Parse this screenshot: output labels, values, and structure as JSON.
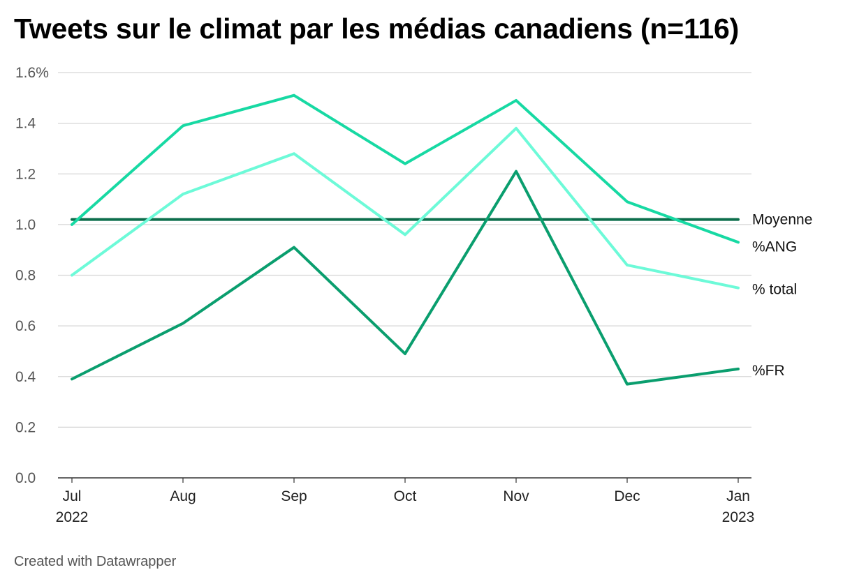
{
  "header": {
    "title": "Tweets sur le climat par les médias canadiens (n=116)"
  },
  "footer": {
    "credit": "Created with Datawrapper"
  },
  "chart_data": {
    "type": "line",
    "title": "Tweets sur le climat par les médias canadiens (n=116)",
    "xlabel": "",
    "ylabel": "",
    "x": [
      "2022-07",
      "2022-08",
      "2022-09",
      "2022-10",
      "2022-11",
      "2022-12",
      "2023-01"
    ],
    "x_tick_labels": [
      {
        "month": "Jul",
        "year": "2022"
      },
      {
        "month": "Aug",
        "year": ""
      },
      {
        "month": "Sep",
        "year": ""
      },
      {
        "month": "Oct",
        "year": ""
      },
      {
        "month": "Nov",
        "year": ""
      },
      {
        "month": "Dec",
        "year": ""
      },
      {
        "month": "Jan",
        "year": "2023"
      }
    ],
    "ylim": [
      0,
      1.6
    ],
    "y_ticks": [
      0,
      0.2,
      0.4,
      0.6,
      0.8,
      1.0,
      1.2,
      1.4,
      1.6
    ],
    "y_tick_labels": [
      "0.0",
      "0.2",
      "0.4",
      "0.6",
      "0.8",
      "1.0",
      "1.2",
      "1.4",
      "1.6%"
    ],
    "grid": true,
    "series": [
      {
        "name": "Moyenne",
        "color": "#0c6e4b",
        "values": [
          1.02,
          1.02,
          1.02,
          1.02,
          1.02,
          1.02,
          1.02
        ]
      },
      {
        "name": "%ANG",
        "color": "#17d9a3",
        "values": [
          1.0,
          1.39,
          1.51,
          1.24,
          1.49,
          1.09,
          0.93
        ]
      },
      {
        "name": "% total",
        "color": "#6dfad8",
        "values": [
          0.8,
          1.12,
          1.28,
          0.96,
          1.38,
          0.84,
          0.75
        ]
      },
      {
        "name": "%FR",
        "color": "#0a9e6e",
        "values": [
          0.39,
          0.61,
          0.91,
          0.49,
          1.21,
          0.37,
          0.43
        ]
      }
    ]
  }
}
